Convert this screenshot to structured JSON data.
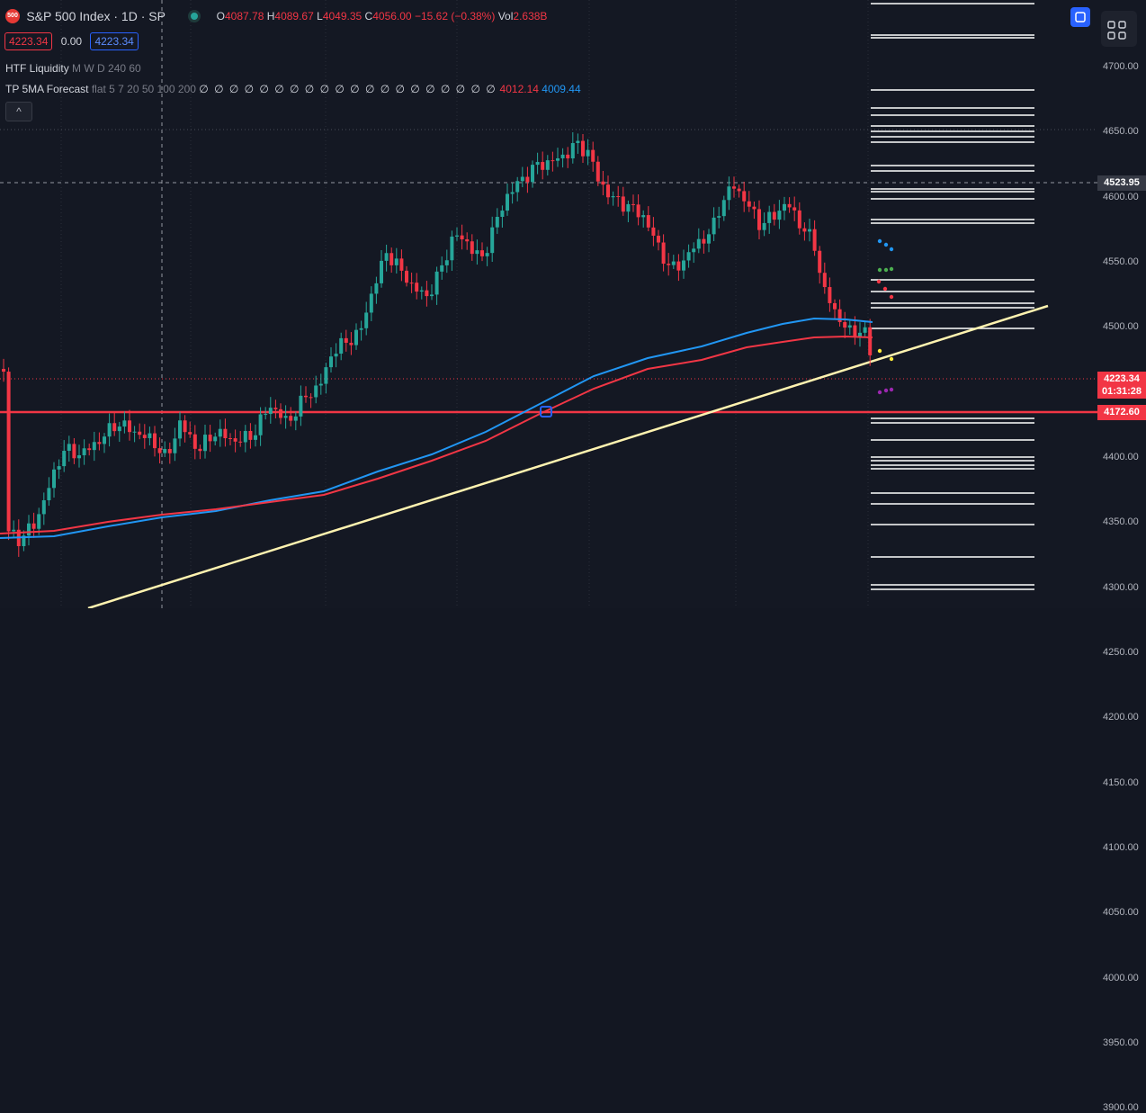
{
  "header": {
    "badge": "500",
    "title": "S&P 500 Index · 1D · SP",
    "ohlc": {
      "o_key": "O",
      "o_val": "4087.78",
      "h_key": "H",
      "h_val": "4089.67",
      "l_key": "L",
      "l_val": "4049.35",
      "c_key": "C",
      "c_val": "4056.00",
      "change": "−15.62 (−0.38%)",
      "vol_key": "Vol",
      "vol_val": "2.638B"
    },
    "bid": "4223.34",
    "spread": "0.00",
    "ask": "4223.34"
  },
  "indicators": [
    {
      "name": "HTF Liquidity",
      "params": "M W D 240 60"
    },
    {
      "name": "TP 5MA Forecast",
      "params": "flat 5 7 20 50 100 200",
      "zeros": "∅ ∅ ∅ ∅ ∅ ∅ ∅ ∅ ∅ ∅ ∅ ∅ ∅ ∅ ∅ ∅ ∅ ∅ ∅ ∅",
      "value1": "4012.14",
      "value2": "4009.44"
    }
  ],
  "collapse_label": "^",
  "price_scale": {
    "ticks": [
      "4700.00",
      "4650.00",
      "4600.00",
      "4550.00",
      "4500.00",
      "4450.00",
      "4400.00",
      "4350.00",
      "4300.00",
      "4250.00",
      "4200.00",
      "4150.00",
      "4100.00",
      "4050.00",
      "4000.00",
      "3950.00",
      "3900.00"
    ],
    "crosshair_label": "4523.95",
    "last_price": "4223.34",
    "countdown": "01:31:28",
    "level_label": "4172.60"
  },
  "colors": {
    "up": "#26a69a",
    "down": "#f23645",
    "ma_blue": "#2196f3",
    "ma_red": "#f23645",
    "trendline": "#fff3b0",
    "level": "#f23645",
    "liquidity": "#ffffff"
  },
  "icons": [
    "symbol-logo-icon",
    "visibility-eye-icon",
    "chevron-up-icon",
    "sync-icon",
    "layout-grid-icon"
  ]
}
